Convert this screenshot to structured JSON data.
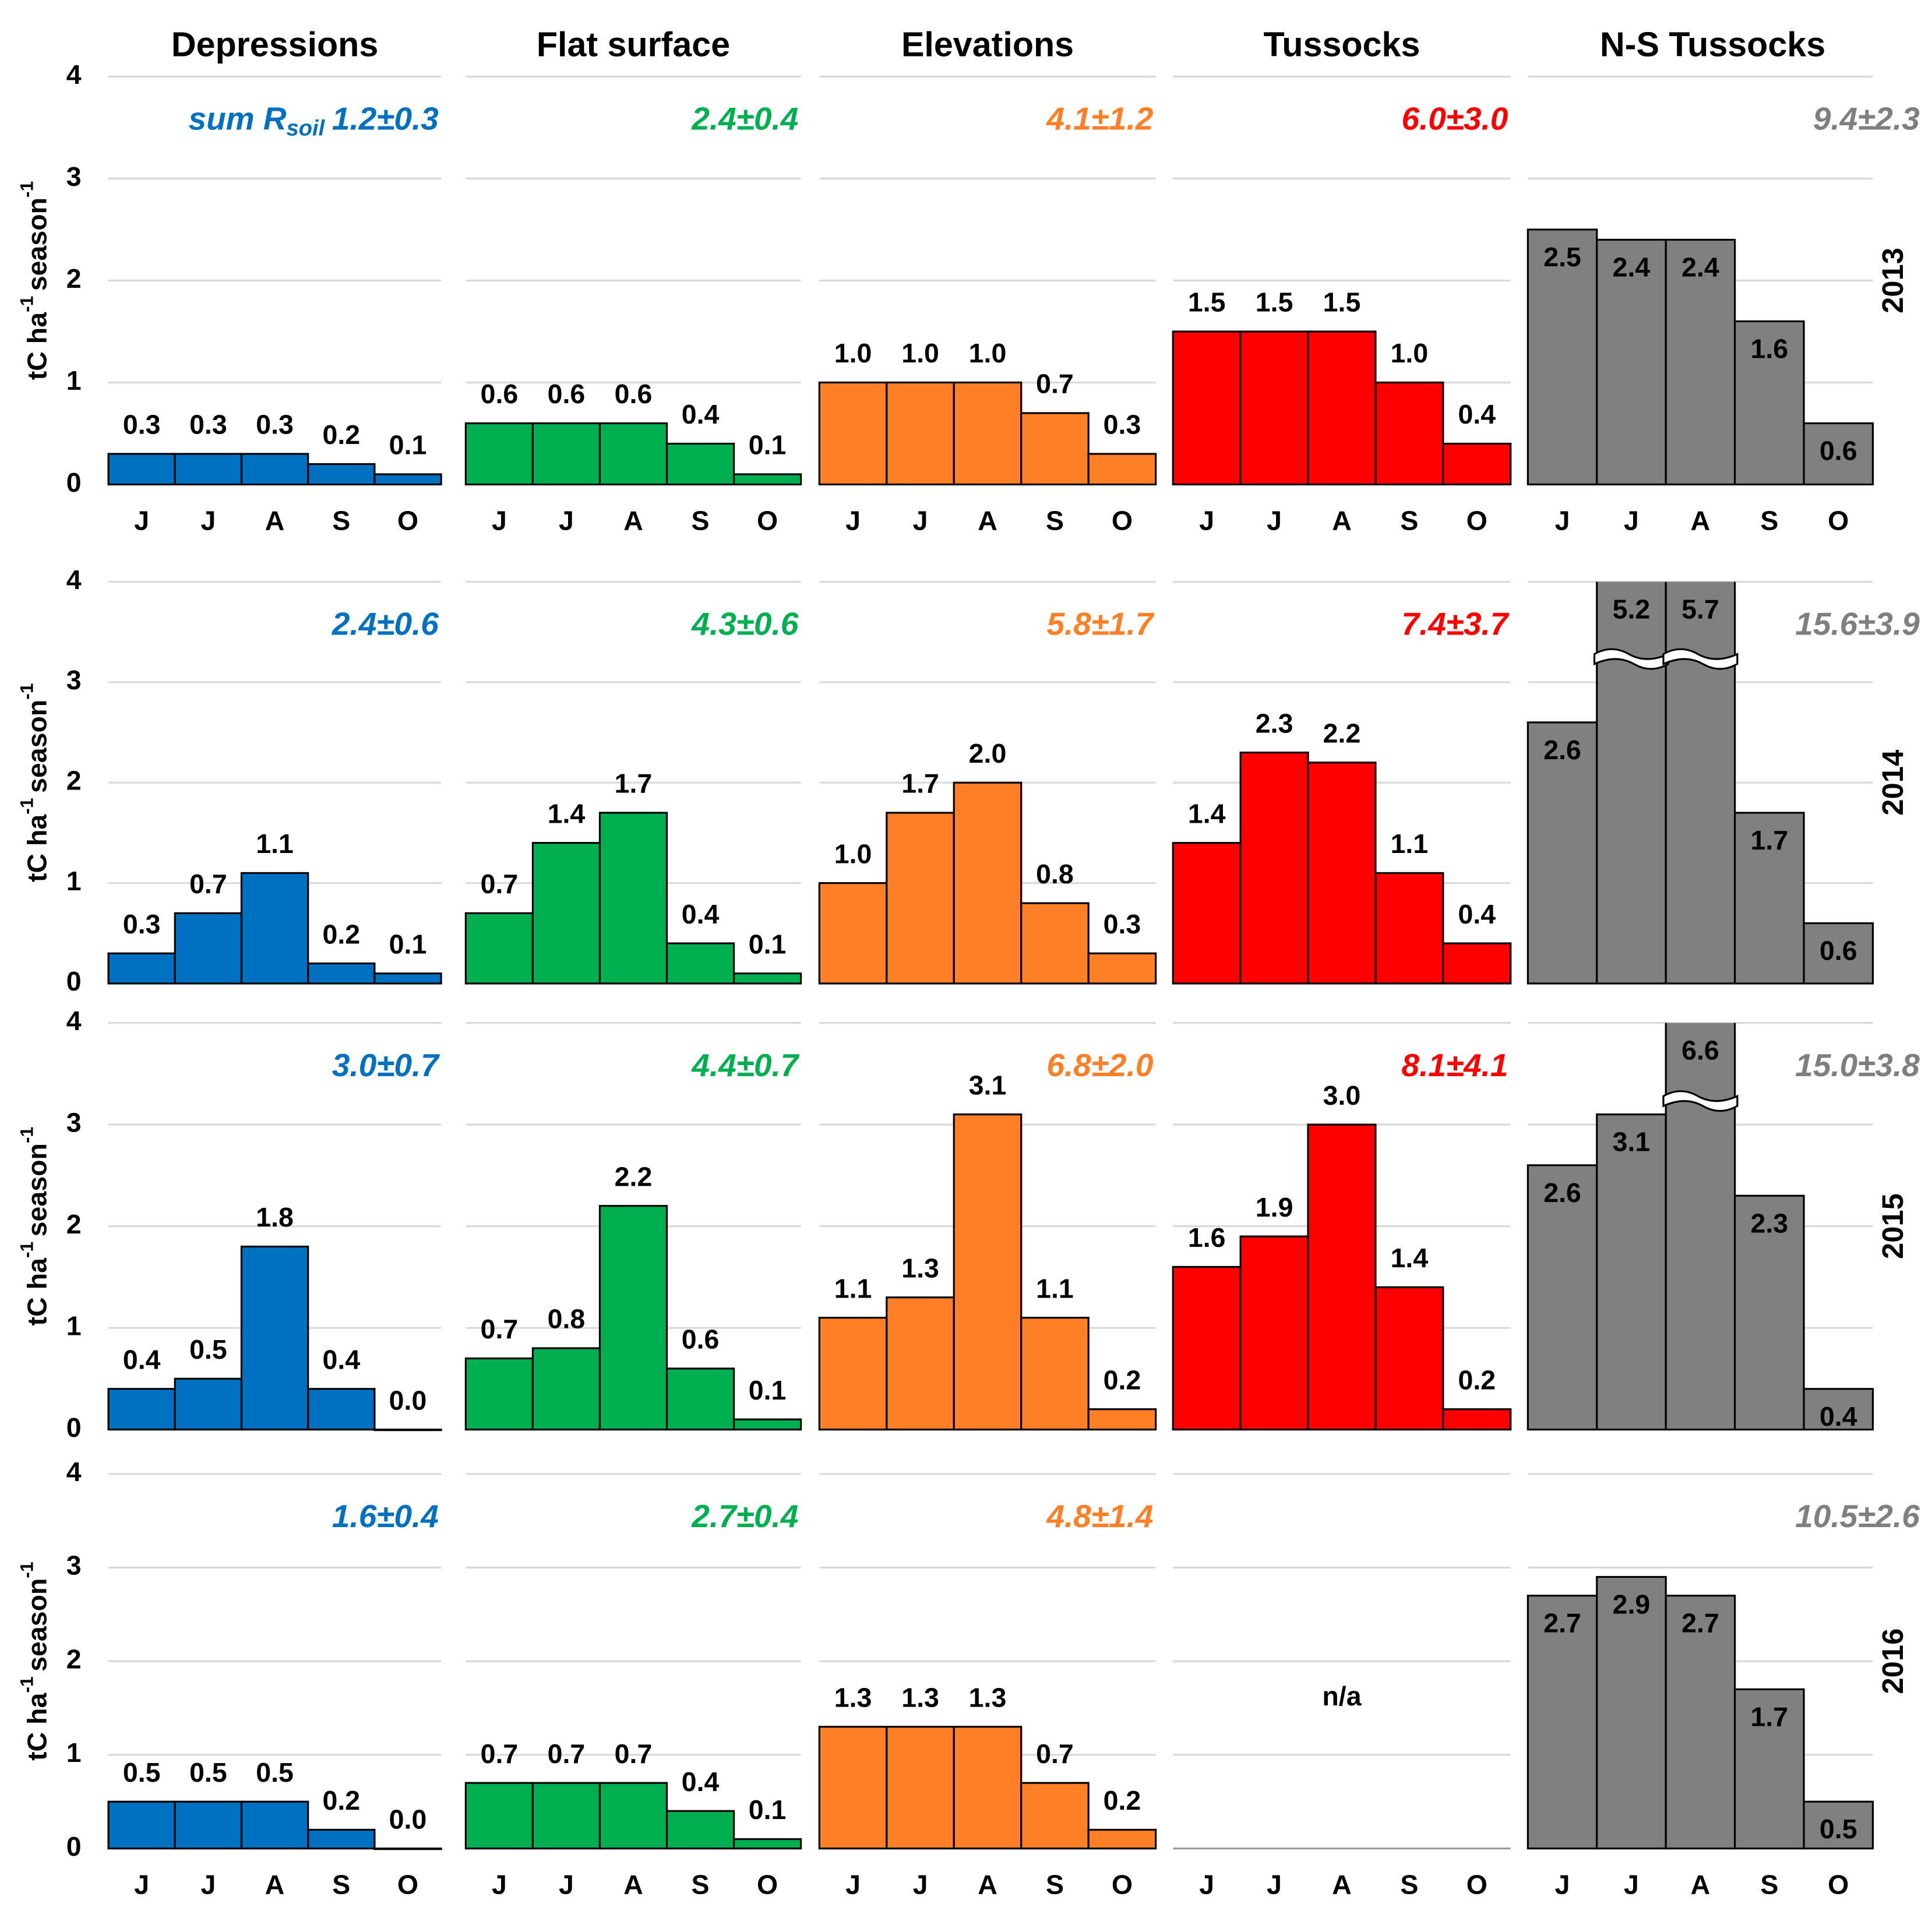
{
  "chart_data": [
    {
      "type": "bar",
      "title": "Depressions",
      "ylabel": [
        "tC ha",
        "-1",
        "season",
        "-1"
      ],
      "annotation_label": [
        "sum R",
        "soil"
      ],
      "annotation": "1.2±0.3",
      "color": "#0070c0",
      "categories": [
        "J",
        "J",
        "A",
        "S",
        "O"
      ],
      "values": [
        0.3,
        0.3,
        0.3,
        0.2,
        0.1
      ],
      "value_labels": [
        "0.3",
        "0.3",
        "0.3",
        "0.2",
        "0.1"
      ],
      "ylim": [
        0,
        4
      ],
      "yticks": [
        0,
        1,
        2,
        3,
        4
      ],
      "grid": true
    },
    {
      "type": "bar",
      "title": "Flat surface",
      "annotation": "2.4±0.4",
      "color": "#00b050",
      "categories": [
        "J",
        "J",
        "A",
        "S",
        "O"
      ],
      "values": [
        0.6,
        0.6,
        0.6,
        0.4,
        0.1
      ],
      "value_labels": [
        "0.6",
        "0.6",
        "0.6",
        "0.4",
        "0.1"
      ],
      "ylim": [
        0,
        4
      ],
      "yticks": [
        0,
        1,
        2,
        3,
        4
      ],
      "grid": true
    },
    {
      "type": "bar",
      "title": "Elevations",
      "annotation": "4.1±1.2",
      "color": "#ff7f27",
      "categories": [
        "J",
        "J",
        "A",
        "S",
        "O"
      ],
      "values": [
        1.0,
        1.0,
        1.0,
        0.7,
        0.3
      ],
      "value_labels": [
        "1.0",
        "1.0",
        "1.0",
        "0.7",
        "0.3"
      ],
      "ylim": [
        0,
        4
      ],
      "yticks": [
        0,
        1,
        2,
        3,
        4
      ],
      "grid": true
    },
    {
      "type": "bar",
      "title": "Tussocks",
      "annotation": "6.0±3.0",
      "color": "#ff0000",
      "categories": [
        "J",
        "J",
        "A",
        "S",
        "O"
      ],
      "values": [
        1.5,
        1.5,
        1.5,
        1.0,
        0.4
      ],
      "value_labels": [
        "1.5",
        "1.5",
        "1.5",
        "1.0",
        "0.4"
      ],
      "ylim": [
        0,
        4
      ],
      "yticks": [
        0,
        1,
        2,
        3,
        4
      ],
      "grid": true
    },
    {
      "type": "bar",
      "title": "N-S Tussocks",
      "year": "2013",
      "annotation": "9.4±2.3",
      "color": "#808080",
      "annotation_color": "#7f7f7f",
      "labels_inside": true,
      "categories": [
        "J",
        "J",
        "A",
        "S",
        "O"
      ],
      "values": [
        2.5,
        2.4,
        2.4,
        1.6,
        0.6
      ],
      "value_labels": [
        "2.5",
        "2.4",
        "2.4",
        "1.6",
        "0.6"
      ],
      "ylim": [
        0,
        4
      ],
      "yticks": [
        0,
        1,
        2,
        3,
        4
      ],
      "grid": true
    },
    {
      "type": "bar",
      "ylabel": [
        "tC ha",
        "-1",
        "season",
        "-1"
      ],
      "annotation": "2.4±0.6",
      "color": "#0070c0",
      "values": [
        0.3,
        0.7,
        1.1,
        0.2,
        0.1
      ],
      "value_labels": [
        "0.3",
        "0.7",
        "1.1",
        "0.2",
        "0.1"
      ],
      "ylim": [
        0,
        4
      ],
      "yticks": [
        0,
        1,
        2,
        3,
        4
      ],
      "grid": true
    },
    {
      "type": "bar",
      "annotation": "4.3±0.6",
      "color": "#00b050",
      "values": [
        0.7,
        1.4,
        1.7,
        0.4,
        0.1
      ],
      "value_labels": [
        "0.7",
        "1.4",
        "1.7",
        "0.4",
        "0.1"
      ],
      "ylim": [
        0,
        4
      ],
      "yticks": [
        0,
        1,
        2,
        3,
        4
      ],
      "grid": true
    },
    {
      "type": "bar",
      "annotation": "5.8±1.7",
      "color": "#ff7f27",
      "values": [
        1.0,
        1.7,
        2.0,
        0.8,
        0.3
      ],
      "value_labels": [
        "1.0",
        "1.7",
        "2.0",
        "0.8",
        "0.3"
      ],
      "ylim": [
        0,
        4
      ],
      "yticks": [
        0,
        1,
        2,
        3,
        4
      ],
      "grid": true
    },
    {
      "type": "bar",
      "annotation": "7.4±3.7",
      "color": "#ff0000",
      "values": [
        1.4,
        2.3,
        2.2,
        1.1,
        0.4
      ],
      "value_labels": [
        "1.4",
        "2.3",
        "2.2",
        "1.1",
        "0.4"
      ],
      "ylim": [
        0,
        4
      ],
      "yticks": [
        0,
        1,
        2,
        3,
        4
      ],
      "grid": true
    },
    {
      "type": "bar",
      "year": "2014",
      "annotation": "15.6±3.9",
      "color": "#808080",
      "annotation_color": "#7f7f7f",
      "labels_inside": true,
      "values": [
        2.6,
        5.2,
        5.7,
        1.7,
        0.6
      ],
      "value_labels": [
        "2.6",
        "5.2",
        "5.7",
        "1.7",
        "0.6"
      ],
      "ylim": [
        0,
        4
      ],
      "yticks": [
        0,
        1,
        2,
        3,
        4
      ],
      "grid": true
    },
    {
      "type": "bar",
      "ylabel": [
        "tC ha",
        "-1",
        "season",
        "-1"
      ],
      "annotation": "3.0±0.7",
      "color": "#0070c0",
      "values": [
        0.4,
        0.5,
        1.8,
        0.4,
        0
      ],
      "value_labels": [
        "0.4",
        "0.5",
        "1.8",
        "0.4",
        "0.0"
      ],
      "ylim": [
        0,
        4
      ],
      "yticks": [
        0,
        1,
        2,
        3,
        4
      ],
      "grid": true
    },
    {
      "type": "bar",
      "annotation": "4.4±0.7",
      "color": "#00b050",
      "values": [
        0.7,
        0.8,
        2.2,
        0.6,
        0.1
      ],
      "value_labels": [
        "0.7",
        "0.8",
        "2.2",
        "0.6",
        "0.1"
      ],
      "ylim": [
        0,
        4
      ],
      "yticks": [
        0,
        1,
        2,
        3,
        4
      ],
      "grid": true
    },
    {
      "type": "bar",
      "annotation": "6.8±2.0",
      "color": "#ff7f27",
      "values": [
        1.1,
        1.3,
        3.1,
        1.1,
        0.2
      ],
      "value_labels": [
        "1.1",
        "1.3",
        "3.1",
        "1.1",
        "0.2"
      ],
      "ylim": [
        0,
        4
      ],
      "yticks": [
        0,
        1,
        2,
        3,
        4
      ],
      "grid": true
    },
    {
      "type": "bar",
      "annotation": "8.1±4.1",
      "color": "#ff0000",
      "values": [
        1.6,
        1.9,
        3.0,
        1.4,
        0.2
      ],
      "value_labels": [
        "1.6",
        "1.9",
        "3.0",
        "1.4",
        "0.2"
      ],
      "ylim": [
        0,
        4
      ],
      "yticks": [
        0,
        1,
        2,
        3,
        4
      ],
      "grid": true
    },
    {
      "type": "bar",
      "year": "2015",
      "annotation": "15.0±3.8",
      "color": "#808080",
      "annotation_color": "#7f7f7f",
      "labels_inside": true,
      "values": [
        2.6,
        3.1,
        6.6,
        2.3,
        0.4
      ],
      "value_labels": [
        "2.6",
        "3.1",
        "6.6",
        "2.3",
        "0.4"
      ],
      "ylim": [
        0,
        4
      ],
      "yticks": [
        0,
        1,
        2,
        3,
        4
      ],
      "grid": true
    },
    {
      "type": "bar",
      "ylabel": [
        "tC ha",
        "-1",
        "season",
        "-1"
      ],
      "annotation": "1.6±0.4",
      "color": "#0070c0",
      "categories": [
        "J",
        "J",
        "A",
        "S",
        "O"
      ],
      "values": [
        0.5,
        0.5,
        0.5,
        0.2,
        0
      ],
      "value_labels": [
        "0.5",
        "0.5",
        "0.5",
        "0.2",
        "0.0"
      ],
      "ylim": [
        0,
        4
      ],
      "yticks": [
        0,
        1,
        2,
        3,
        4
      ],
      "grid": true
    },
    {
      "type": "bar",
      "annotation": "2.7±0.4",
      "color": "#00b050",
      "categories": [
        "J",
        "J",
        "A",
        "S",
        "O"
      ],
      "values": [
        0.7,
        0.7,
        0.7,
        0.4,
        0.1
      ],
      "value_labels": [
        "0.7",
        "0.7",
        "0.7",
        "0.4",
        "0.1"
      ],
      "ylim": [
        0,
        4
      ],
      "yticks": [
        0,
        1,
        2,
        3,
        4
      ],
      "grid": true
    },
    {
      "type": "bar",
      "annotation": "4.8±1.4",
      "color": "#ff7f27",
      "categories": [
        "J",
        "J",
        "A",
        "S",
        "O"
      ],
      "values": [
        1.3,
        1.3,
        1.3,
        0.7,
        0.2
      ],
      "value_labels": [
        "1.3",
        "1.3",
        "1.3",
        "0.7",
        "0.2"
      ],
      "ylim": [
        0,
        4
      ],
      "yticks": [
        0,
        1,
        2,
        3,
        4
      ],
      "grid": true
    },
    {
      "type": "bar",
      "note": "n/a",
      "categories": [
        "J",
        "J",
        "A",
        "S",
        "O"
      ],
      "ylim": [
        0,
        4
      ],
      "yticks": [
        0,
        1,
        2,
        3,
        4
      ],
      "grid": true
    },
    {
      "type": "bar",
      "year": "2016",
      "annotation": "10.5±2.6",
      "color": "#808080",
      "annotation_color": "#7f7f7f",
      "labels_inside": true,
      "categories": [
        "J",
        "J",
        "A",
        "S",
        "O"
      ],
      "values": [
        2.7,
        2.9,
        2.7,
        1.7,
        0.5
      ],
      "value_labels": [
        "2.7",
        "2.9",
        "2.7",
        "1.7",
        "0.5"
      ],
      "ylim": [
        0,
        4
      ],
      "yticks": [
        0,
        1,
        2,
        3,
        4
      ],
      "grid": true
    }
  ]
}
